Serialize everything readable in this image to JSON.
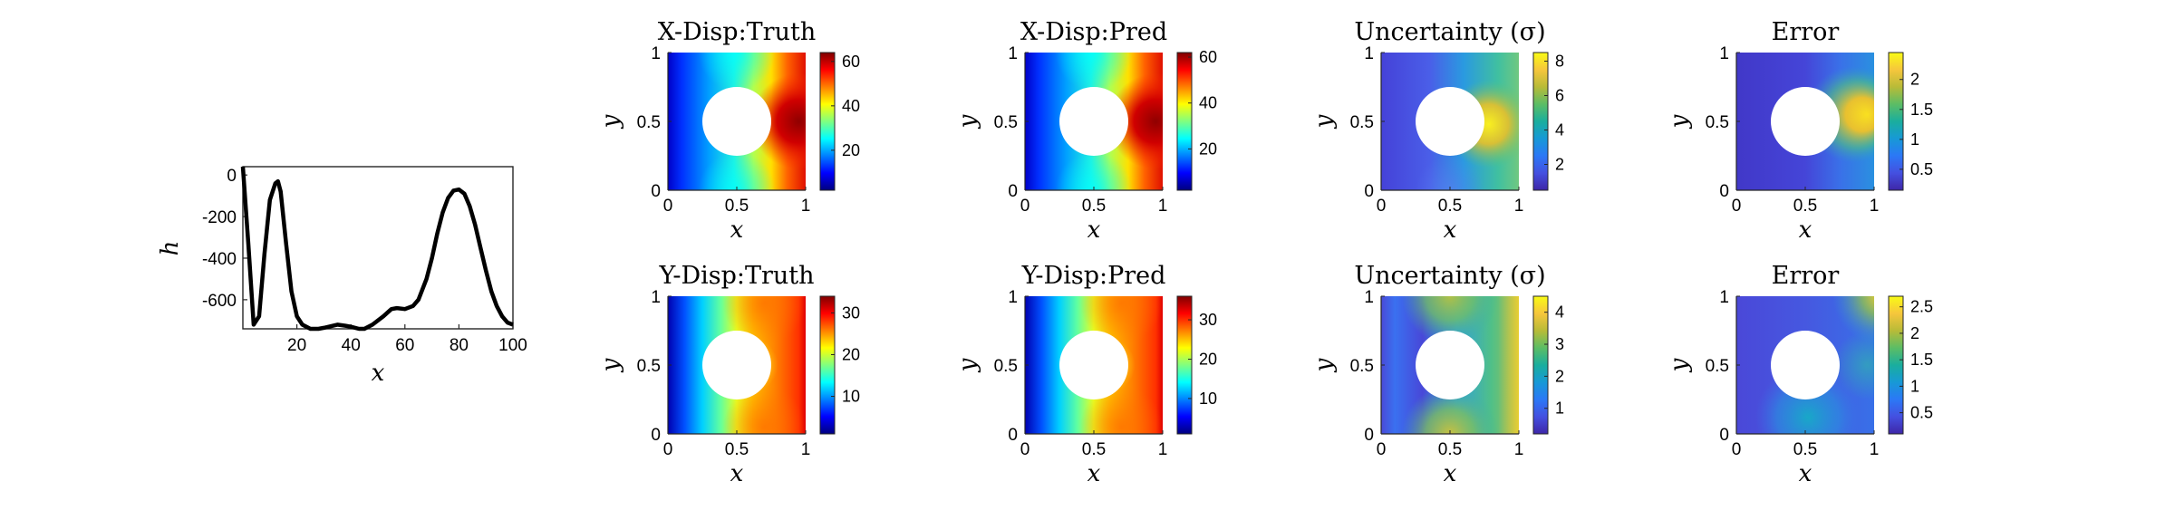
{
  "chart_data": [
    {
      "type": "line",
      "xlabel": "x",
      "ylabel": "h",
      "xlim": [
        0,
        100
      ],
      "ylim": [
        -740,
        40
      ],
      "xticks": [
        "20",
        "40",
        "60",
        "80",
        "100"
      ],
      "yticks": [
        "0",
        "-200",
        "-400",
        "-600"
      ],
      "series": [
        {
          "color": "#000000",
          "x": [
            0,
            2,
            4,
            6,
            8,
            10,
            12,
            13,
            14,
            16,
            18,
            20,
            22,
            25,
            28,
            30,
            35,
            38,
            40,
            43,
            45,
            48,
            52,
            55,
            57,
            60,
            63,
            65,
            68,
            70,
            72,
            74,
            76,
            78,
            80,
            82,
            84,
            86,
            88,
            90,
            92,
            94,
            96,
            98,
            100
          ],
          "y": [
            40,
            -330,
            -720,
            -680,
            -380,
            -120,
            -40,
            -30,
            -80,
            -330,
            -560,
            -680,
            -720,
            -740,
            -740,
            -735,
            -720,
            -725,
            -730,
            -740,
            -740,
            -720,
            -680,
            -645,
            -640,
            -645,
            -630,
            -600,
            -500,
            -400,
            -280,
            -180,
            -110,
            -75,
            -70,
            -90,
            -150,
            -240,
            -350,
            -460,
            -560,
            -630,
            -680,
            -710,
            -720
          ]
        }
      ]
    },
    {
      "type": "heatmap",
      "title": "X-Disp:Truth",
      "xlabel": "x",
      "ylabel": "y",
      "xlim": [
        0,
        1
      ],
      "ylim": [
        0,
        1
      ],
      "colormap": "jet",
      "clim": [
        2,
        64
      ],
      "colorbar_ticks": [
        "20",
        "40",
        "60"
      ],
      "hole": {
        "center": [
          0.5,
          0.5
        ],
        "radius": 0.25
      },
      "field": "x-displacement"
    },
    {
      "type": "heatmap",
      "title": "X-Disp:Pred",
      "xlabel": "x",
      "ylabel": "y",
      "xlim": [
        0,
        1
      ],
      "ylim": [
        0,
        1
      ],
      "colormap": "jet",
      "clim": [
        2,
        62
      ],
      "colorbar_ticks": [
        "20",
        "40",
        "60"
      ],
      "hole": {
        "center": [
          0.5,
          0.5
        ],
        "radius": 0.25
      },
      "field": "x-displacement"
    },
    {
      "type": "heatmap",
      "title": "Uncertainty (σ)",
      "xlabel": "x",
      "ylabel": "y",
      "xlim": [
        0,
        1
      ],
      "ylim": [
        0,
        1
      ],
      "colormap": "parula",
      "clim": [
        0.5,
        8.5
      ],
      "colorbar_ticks": [
        "2",
        "4",
        "6",
        "8"
      ],
      "hole": {
        "center": [
          0.5,
          0.5
        ],
        "radius": 0.25
      },
      "field": "x-uncertainty"
    },
    {
      "type": "heatmap",
      "title": "Error",
      "xlabel": "x",
      "ylabel": "y",
      "xlim": [
        0,
        1
      ],
      "ylim": [
        0,
        1
      ],
      "colormap": "parula",
      "clim": [
        0.15,
        2.45
      ],
      "colorbar_ticks": [
        "0.5",
        "1",
        "1.5",
        "2"
      ],
      "hole": {
        "center": [
          0.5,
          0.5
        ],
        "radius": 0.25
      },
      "field": "x-error"
    },
    {
      "type": "heatmap",
      "title": "Y-Disp:Truth",
      "xlabel": "x",
      "ylabel": "y",
      "xlim": [
        0,
        1
      ],
      "ylim": [
        0,
        1
      ],
      "colormap": "jet",
      "clim": [
        1,
        34
      ],
      "colorbar_ticks": [
        "10",
        "20",
        "30"
      ],
      "hole": {
        "center": [
          0.5,
          0.5
        ],
        "radius": 0.25
      },
      "field": "y-displacement"
    },
    {
      "type": "heatmap",
      "title": "Y-Disp:Pred",
      "xlabel": "x",
      "ylabel": "y",
      "xlim": [
        0,
        1
      ],
      "ylim": [
        0,
        1
      ],
      "colormap": "jet",
      "clim": [
        1,
        36
      ],
      "colorbar_ticks": [
        "10",
        "20",
        "30"
      ],
      "hole": {
        "center": [
          0.5,
          0.5
        ],
        "radius": 0.25
      },
      "field": "y-displacement"
    },
    {
      "type": "heatmap",
      "title": "Uncertainty (σ)",
      "xlabel": "x",
      "ylabel": "y",
      "xlim": [
        0,
        1
      ],
      "ylim": [
        0,
        1
      ],
      "colormap": "parula",
      "clim": [
        0.2,
        4.5
      ],
      "colorbar_ticks": [
        "1",
        "2",
        "3",
        "4"
      ],
      "hole": {
        "center": [
          0.5,
          0.5
        ],
        "radius": 0.25
      },
      "field": "y-uncertainty"
    },
    {
      "type": "heatmap",
      "title": "Error",
      "xlabel": "x",
      "ylabel": "y",
      "xlim": [
        0,
        1
      ],
      "ylim": [
        0,
        1
      ],
      "colormap": "parula",
      "clim": [
        0.1,
        2.7
      ],
      "colorbar_ticks": [
        "0.5",
        "1",
        "1.5",
        "2",
        "2.5"
      ],
      "hole": {
        "center": [
          0.5,
          0.5
        ],
        "radius": 0.25
      },
      "field": "y-error"
    }
  ]
}
